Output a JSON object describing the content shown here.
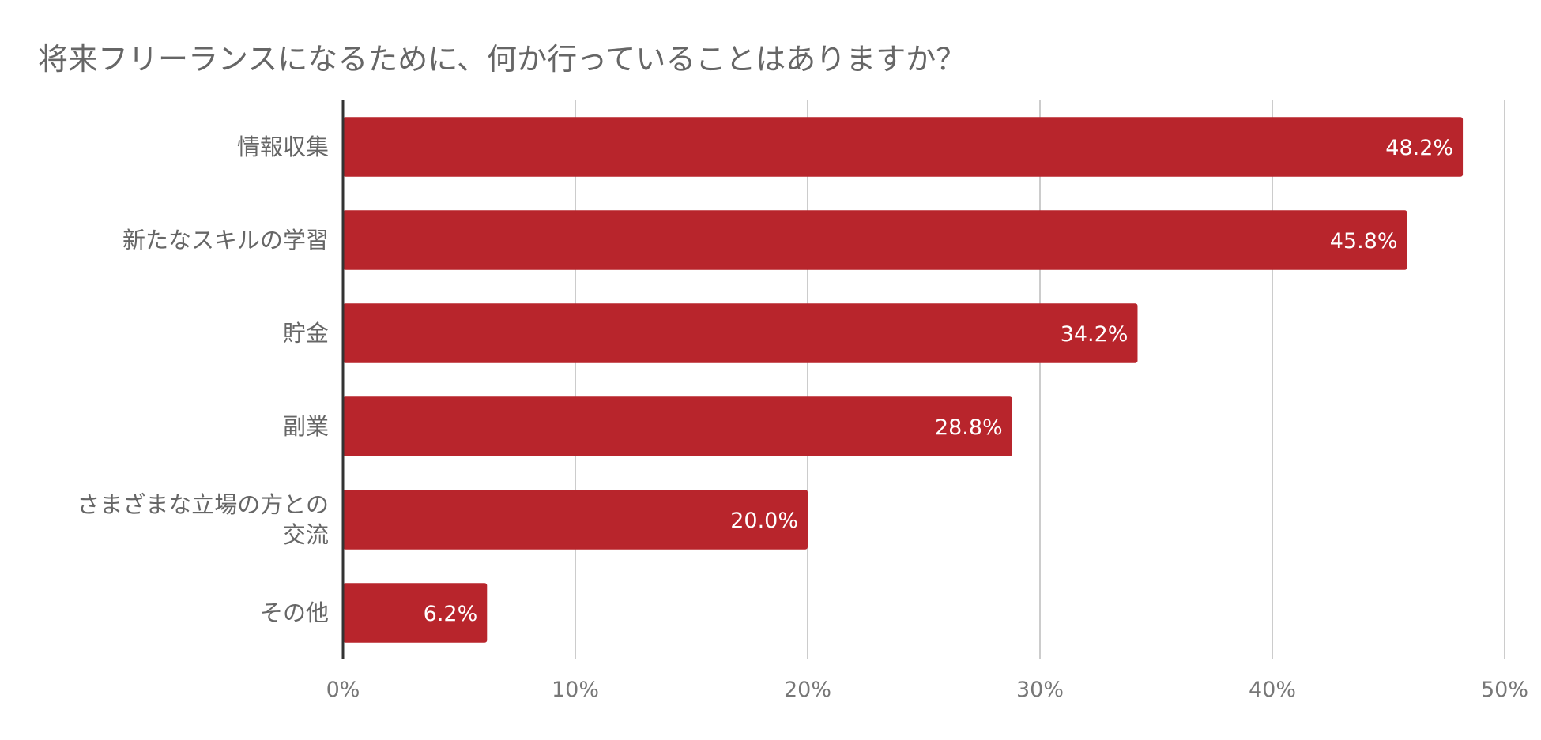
{
  "chart_data": {
    "type": "bar",
    "orientation": "horizontal",
    "title": "将来フリーランスになるために、何か行っていることはありますか？",
    "categories": [
      [
        "情報収集"
      ],
      [
        "新たなスキルの学習"
      ],
      [
        "貯金"
      ],
      [
        "副業"
      ],
      [
        "さまざまな立場の方との",
        "交流"
      ],
      [
        "その他"
      ]
    ],
    "values": [
      48.2,
      45.8,
      34.2,
      28.8,
      20.0,
      6.2
    ],
    "data_labels": [
      "48.2%",
      "45.8%",
      "34.2%",
      "28.8%",
      "20.0%",
      "6.2%"
    ],
    "xlim": [
      0,
      50
    ],
    "x_ticks": [
      0,
      10,
      20,
      30,
      40,
      50
    ],
    "x_tick_labels": [
      "0%",
      "10%",
      "20%",
      "30%",
      "40%",
      "50%"
    ],
    "grid": true,
    "bar_color": "#b8252c",
    "grid_color": "#cccccc",
    "axis_color": "#333333"
  }
}
